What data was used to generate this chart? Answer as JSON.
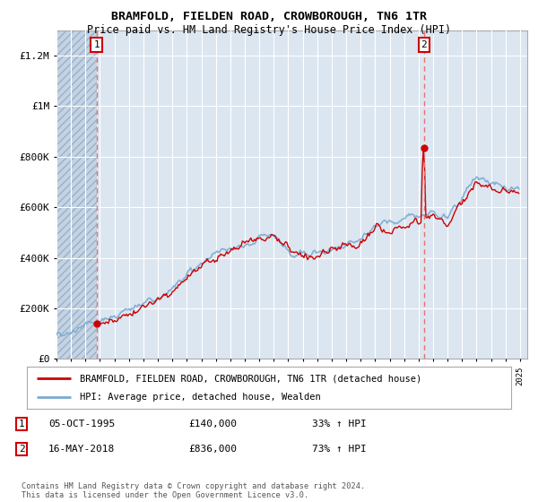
{
  "title": "BRAMFOLD, FIELDEN ROAD, CROWBOROUGH, TN6 1TR",
  "subtitle": "Price paid vs. HM Land Registry's House Price Index (HPI)",
  "legend_label_red": "BRAMFOLD, FIELDEN ROAD, CROWBOROUGH, TN6 1TR (detached house)",
  "legend_label_blue": "HPI: Average price, detached house, Wealden",
  "annotation1_date": "05-OCT-1995",
  "annotation1_price": "£140,000",
  "annotation1_hpi": "33% ↑ HPI",
  "annotation1_year": 1995.76,
  "annotation1_value": 140000,
  "annotation2_date": "16-MAY-2018",
  "annotation2_price": "£836,000",
  "annotation2_hpi": "73% ↑ HPI",
  "annotation2_year": 2018.37,
  "annotation2_value": 836000,
  "ylim_min": 0,
  "ylim_max": 1300000,
  "yticks": [
    0,
    200000,
    400000,
    600000,
    800000,
    1000000,
    1200000
  ],
  "ytick_labels": [
    "£0",
    "£200K",
    "£400K",
    "£600K",
    "£800K",
    "£1M",
    "£1.2M"
  ],
  "xstart": 1993,
  "xend": 2025,
  "copyright_text": "Contains HM Land Registry data © Crown copyright and database right 2024.\nThis data is licensed under the Open Government Licence v3.0.",
  "background_color": "#ffffff",
  "plot_bg_color": "#dce6f1",
  "hatch_color": "#c4d3e3",
  "grid_color": "#ffffff",
  "red_color": "#cc0000",
  "blue_color": "#7aaad0",
  "annotation_box_color": "#cc0000",
  "dashed_line_color": "#e87070"
}
